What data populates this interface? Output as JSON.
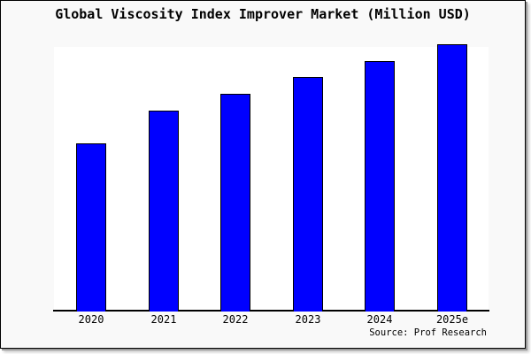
{
  "chart": {
    "title": "Global Viscosity Index Improver Market (Million USD)",
    "source": "Source: Prof Research"
  },
  "chart_data": {
    "type": "bar",
    "title": "Global Viscosity Index Improver Market (Million USD)",
    "categories": [
      "2020",
      "2021",
      "2022",
      "2023",
      "2024",
      "2025e"
    ],
    "values": [
      62.8,
      75.1,
      81.4,
      87.7,
      93.7,
      100
    ],
    "values_unit": "relative height, tallest bar (2025e) = 100; no y-axis scale shown",
    "xlabel": "",
    "ylabel": "",
    "ylim": [
      0,
      100
    ],
    "grid": false,
    "legend": false,
    "source": "Source: Prof Research"
  },
  "colors": {
    "background": "#f9f9f9",
    "plot_background": "#ffffff",
    "bar_fill": "#0000ff",
    "bar_border": "#000000",
    "axis": "#000000",
    "text": "#000000",
    "frame_border": "#000000"
  }
}
